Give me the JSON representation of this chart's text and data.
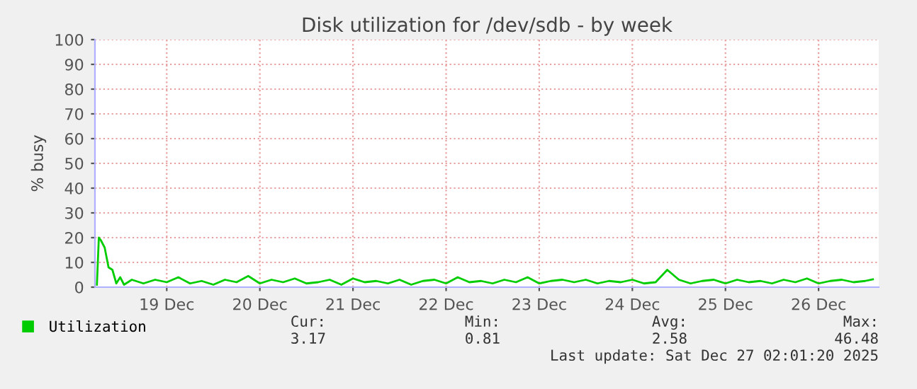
{
  "chart_data": {
    "type": "line",
    "title": "Disk utilization for /dev/sdb - by week",
    "ylabel": "% busy",
    "xlim": [
      "2025-12-18T17:30",
      "2025-12-27T03:30"
    ],
    "xticks": [
      {
        "value": "2025-12-19T12:00",
        "label": "19 Dec"
      },
      {
        "value": "2025-12-20T12:00",
        "label": "20 Dec"
      },
      {
        "value": "2025-12-21T12:00",
        "label": "21 Dec"
      },
      {
        "value": "2025-12-22T12:00",
        "label": "22 Dec"
      },
      {
        "value": "2025-12-23T12:00",
        "label": "23 Dec"
      },
      {
        "value": "2025-12-24T12:00",
        "label": "24 Dec"
      },
      {
        "value": "2025-12-25T12:00",
        "label": "25 Dec"
      },
      {
        "value": "2025-12-26T12:00",
        "label": "26 Dec"
      }
    ],
    "ylim": [
      0,
      100
    ],
    "yticks": [
      0,
      10,
      20,
      30,
      40,
      50,
      60,
      70,
      80,
      90,
      100
    ],
    "grid": true,
    "legend": "bottom left",
    "marker": "none",
    "line_style": "solid",
    "x": [
      "2025-12-18T18:00",
      "2025-12-18T18:30",
      "2025-12-18T19:00",
      "2025-12-18T20:00",
      "2025-12-18T21:00",
      "2025-12-18T22:00",
      "2025-12-18T23:00",
      "2025-12-19T00:00",
      "2025-12-19T01:00",
      "2025-12-19T03:00",
      "2025-12-19T06:00",
      "2025-12-19T09:00",
      "2025-12-19T12:00",
      "2025-12-19T15:00",
      "2025-12-19T18:00",
      "2025-12-19T21:00",
      "2025-12-20T00:00",
      "2025-12-20T03:00",
      "2025-12-20T06:00",
      "2025-12-20T09:00",
      "2025-12-20T12:00",
      "2025-12-20T15:00",
      "2025-12-20T18:00",
      "2025-12-20T21:00",
      "2025-12-21T00:00",
      "2025-12-21T03:00",
      "2025-12-21T06:00",
      "2025-12-21T09:00",
      "2025-12-21T12:00",
      "2025-12-21T15:00",
      "2025-12-21T18:00",
      "2025-12-21T21:00",
      "2025-12-22T00:00",
      "2025-12-22T03:00",
      "2025-12-22T06:00",
      "2025-12-22T09:00",
      "2025-12-22T12:00",
      "2025-12-22T15:00",
      "2025-12-22T18:00",
      "2025-12-22T21:00",
      "2025-12-23T00:00",
      "2025-12-23T03:00",
      "2025-12-23T06:00",
      "2025-12-23T09:00",
      "2025-12-23T12:00",
      "2025-12-23T15:00",
      "2025-12-23T18:00",
      "2025-12-23T21:00",
      "2025-12-24T00:00",
      "2025-12-24T03:00",
      "2025-12-24T06:00",
      "2025-12-24T09:00",
      "2025-12-24T12:00",
      "2025-12-24T15:00",
      "2025-12-24T18:00",
      "2025-12-24T21:00",
      "2025-12-25T00:00",
      "2025-12-25T03:00",
      "2025-12-25T06:00",
      "2025-12-25T09:00",
      "2025-12-25T12:00",
      "2025-12-25T15:00",
      "2025-12-25T18:00",
      "2025-12-25T21:00",
      "2025-12-26T00:00",
      "2025-12-26T03:00",
      "2025-12-26T06:00",
      "2025-12-26T09:00",
      "2025-12-26T12:00",
      "2025-12-26T15:00",
      "2025-12-26T18:00",
      "2025-12-26T21:00",
      "2025-12-27T00:00",
      "2025-12-27T02:00"
    ],
    "series": [
      {
        "name": "Utilization",
        "color": "#00cc00",
        "values": [
          1,
          20,
          19,
          16,
          8,
          7,
          1.5,
          4,
          1,
          3,
          1.5,
          3,
          2,
          4,
          1.5,
          2.5,
          1,
          3,
          2,
          4.5,
          1.5,
          3,
          2,
          3.5,
          1.5,
          2,
          3,
          1,
          3.5,
          2,
          2.5,
          1.5,
          3,
          1,
          2.5,
          3,
          1.5,
          4,
          2,
          2.5,
          1.5,
          3,
          2,
          4,
          1.5,
          2.5,
          3,
          2,
          3,
          1.5,
          2.5,
          2,
          3,
          1.5,
          2,
          7,
          3,
          1.5,
          2.5,
          3,
          1.5,
          3,
          2,
          2.5,
          1.5,
          3,
          2,
          3.5,
          1.5,
          2.5,
          3,
          2,
          2.5,
          3.17
        ]
      }
    ],
    "annotations": [
      "Cur:",
      "Min:",
      "Avg:",
      "Max:",
      "3.17",
      "0.81",
      "2.58",
      "46.48",
      "Last update: Sat Dec 27 02:01:20 2025"
    ]
  }
}
